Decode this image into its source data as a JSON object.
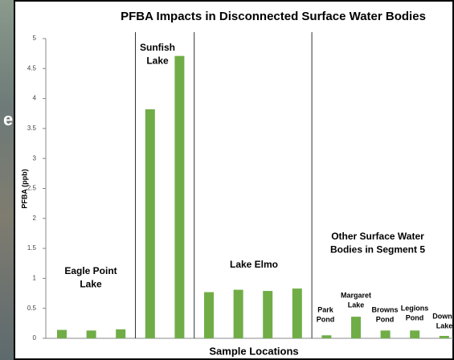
{
  "background_text": "e",
  "chart_data": {
    "type": "bar",
    "title": "PFBA Impacts in Disconnected Surface Water Bodies",
    "x_label": "Sample Locations",
    "y_label": "PFBA (ppb)",
    "categories": [
      null,
      null,
      null,
      null,
      null,
      null,
      null,
      null,
      null,
      null,
      null,
      null,
      null,
      null
    ],
    "values": [
      0.14,
      0.13,
      0.15,
      3.82,
      4.71,
      0.77,
      0.81,
      0.79,
      0.83,
      0.05,
      0.36,
      0.13,
      0.13,
      0.04
    ],
    "color": "#70ad47",
    "ylim": [
      0,
      5
    ],
    "yticks": [
      0,
      0.5,
      1,
      1.5,
      2,
      2.5,
      3,
      3.5,
      4,
      4.5,
      5
    ],
    "groups": [
      {
        "lines": [
          "Eagle Point",
          "Lake"
        ]
      },
      {
        "lines": [
          "Sunfish",
          "Lake"
        ]
      },
      {
        "lines": [
          "Lake Elmo"
        ]
      },
      {
        "lines": [
          "Other Surface Water",
          "Bodies in Segment 5"
        ]
      }
    ],
    "annotations": [
      {
        "lines": [
          "Park",
          "Pond"
        ]
      },
      {
        "lines": [
          "Margaret",
          "Lake"
        ]
      },
      {
        "lines": [
          "Browns",
          "Pond"
        ]
      },
      {
        "lines": [
          "Legions",
          "Pond"
        ]
      },
      {
        "lines": [
          "Downs",
          "Lake"
        ]
      }
    ]
  }
}
